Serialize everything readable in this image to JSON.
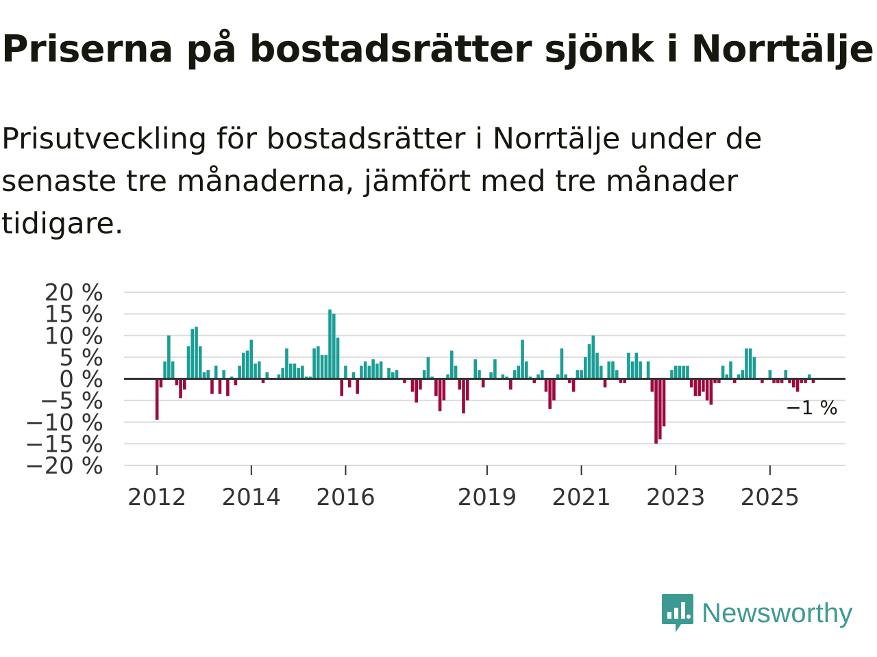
{
  "title": "Priserna på bostadsrätter sjönk i Norrtälje",
  "subtitle": "Prisutveckling för bostadsrätter i Norrtälje under de senaste tre månaderna, jämfört med tre månader tidigare.",
  "colors": {
    "positive": "#1a9e95",
    "negative": "#9b0a3e",
    "grid": "#dcdcdc",
    "zero_line": "#333333",
    "text": "#16170f",
    "brand": "#3d9a92"
  },
  "brand": {
    "name": "Newsworthy",
    "icon": "newsworthy-logo-icon"
  },
  "chart_data": {
    "type": "bar",
    "title": "Priserna på bostadsrätter sjönk i Norrtälje",
    "xlabel": "",
    "ylabel": "",
    "unit": "%",
    "ylim": [
      -20,
      20
    ],
    "yticks": [
      20,
      15,
      10,
      5,
      0,
      -5,
      -10,
      -15,
      -20
    ],
    "ytick_labels": [
      "20 %",
      "15 %",
      "10 %",
      "5 %",
      "0 %",
      "−5 %",
      "−10 %",
      "−15 %",
      "−20 %"
    ],
    "xlim": [
      2011.3,
      2026.6
    ],
    "xticks": [
      2012,
      2014,
      2016,
      2019,
      2021,
      2023,
      2025
    ],
    "xtick_labels": [
      "2012",
      "2014",
      "2016",
      "2019",
      "2021",
      "2023",
      "2025"
    ],
    "grid": true,
    "legend": "none",
    "start_year": 2012,
    "start_month": 1,
    "frequency": "monthly",
    "values": [
      -9.5,
      -2,
      4,
      10,
      4,
      -1.5,
      -4.5,
      -2.5,
      7.5,
      11.5,
      12,
      7.5,
      1.5,
      2,
      -3.5,
      3,
      -3.5,
      2,
      -4,
      0.5,
      -1.5,
      3,
      6,
      6.5,
      9,
      3.5,
      4,
      -1,
      1.5,
      0,
      0,
      1,
      2.5,
      7,
      3.5,
      3.5,
      2.5,
      3,
      0.5,
      0.5,
      7,
      7.5,
      5.5,
      5.5,
      16,
      15,
      9.5,
      -4,
      3,
      -2,
      1.5,
      -3.5,
      3,
      4,
      3,
      4.5,
      3.5,
      4,
      0,
      2.5,
      1.5,
      2,
      0,
      -1,
      0,
      -3,
      -5.5,
      -2.5,
      2,
      5,
      0.5,
      -4,
      -7.5,
      -5,
      1,
      6.5,
      3,
      -2.5,
      -8,
      -5,
      0,
      4.5,
      2,
      -2,
      0,
      1.5,
      4.5,
      0,
      1,
      0.5,
      -2.5,
      2,
      3,
      9,
      4,
      0.5,
      -1,
      1,
      2,
      -3,
      -7,
      -5,
      1,
      7,
      1,
      -1,
      -3,
      2,
      2,
      5,
      8,
      10,
      6,
      3,
      -2,
      4,
      4,
      2,
      -1,
      -1,
      6,
      4,
      6,
      4,
      0,
      4,
      -3,
      -15,
      -14,
      -11,
      0,
      2,
      3,
      3,
      3,
      3,
      -2,
      -4,
      -4,
      -3,
      -5,
      -6,
      -1,
      -1,
      3,
      1,
      4,
      -1,
      1,
      2,
      7,
      7,
      5,
      0,
      -1,
      0,
      2,
      -1,
      -1,
      -1,
      2,
      -1,
      -2,
      -3,
      -1,
      -1,
      1,
      -1
    ],
    "annotations": [
      {
        "label": "−1 %",
        "value": -1,
        "at": "last bar"
      }
    ]
  }
}
